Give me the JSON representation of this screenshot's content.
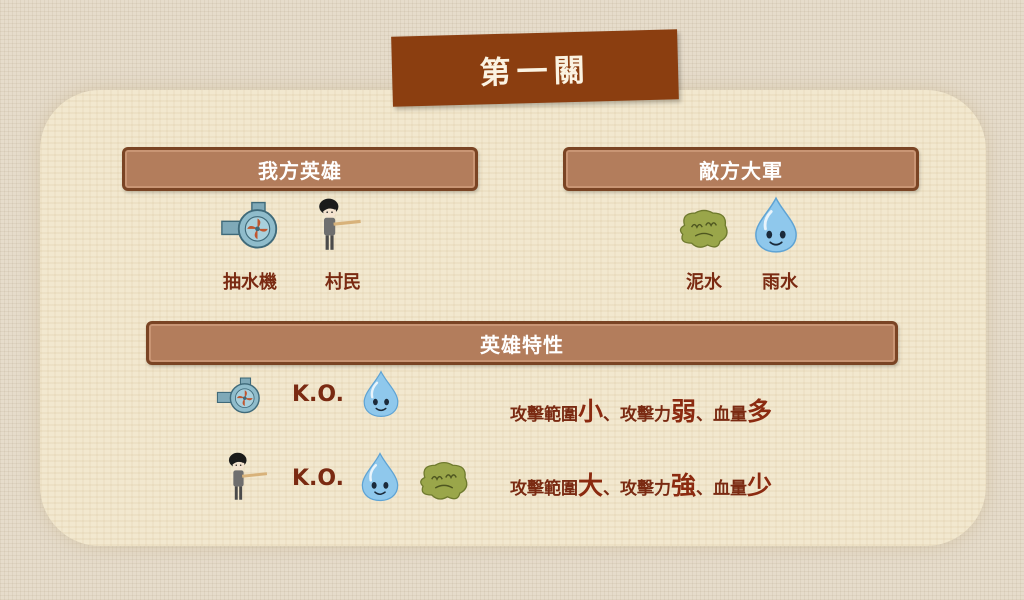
{
  "title": "第一關",
  "sections": {
    "ours": "我方英雄",
    "enemy": "敵方大軍",
    "traits": "英雄特性"
  },
  "heroes": [
    {
      "name": "抽水機",
      "icon": "water-pump-icon"
    },
    {
      "name": "村民",
      "icon": "villager-icon"
    }
  ],
  "enemies": [
    {
      "name": "泥水",
      "icon": "mud-blob-icon"
    },
    {
      "name": "雨水",
      "icon": "raindrop-icon"
    }
  ],
  "traits": [
    {
      "ko": "K.O.",
      "p1": "攻擊範圍",
      "v1": "小",
      "sep1": "、",
      "p2": "攻擊力",
      "v2": "弱",
      "sep2": "、",
      "p3": "血量",
      "v3": "多"
    },
    {
      "ko": "K.O.",
      "p1": "攻擊範圍",
      "v1": "大",
      "sep1": "、",
      "p2": "攻擊力",
      "v2": "強",
      "sep2": "、",
      "p3": "血量",
      "v3": "少"
    }
  ],
  "colors": {
    "banner": "#8b3e10",
    "bar": "#b37d5c",
    "text": "#7a2a12",
    "water": "#8fc8ec",
    "mud": "#9aa64a"
  }
}
